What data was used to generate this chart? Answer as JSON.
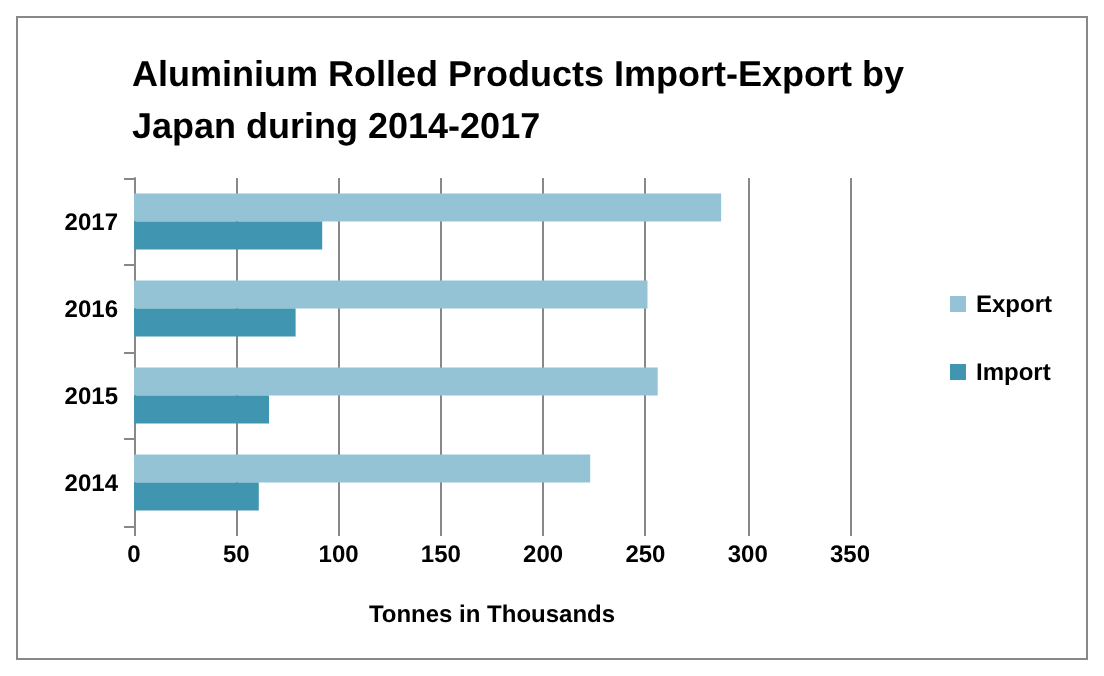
{
  "chart_data": {
    "type": "bar",
    "orientation": "horizontal",
    "title": "Aluminium Rolled Products Import-Export by Japan during 2014-2017",
    "xlabel": "Tonnes in Thousands",
    "categories": [
      "2017",
      "2016",
      "2015",
      "2014"
    ],
    "series": [
      {
        "name": "Export",
        "color": "#93c3d5",
        "values": [
          287,
          251,
          256,
          223
        ]
      },
      {
        "name": "Import",
        "color": "#4096b0",
        "values": [
          92,
          79,
          66,
          61
        ]
      }
    ],
    "xlim": [
      0,
      350
    ],
    "xticks": [
      0,
      50,
      100,
      150,
      200,
      250,
      300,
      350
    ],
    "grid": "x",
    "legend": "right"
  }
}
